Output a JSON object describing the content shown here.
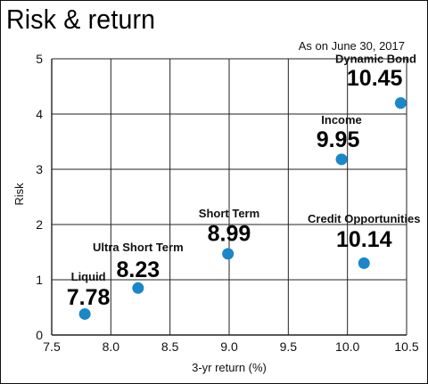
{
  "title": "Risk & return",
  "subtitle": "As on June 30, 2017",
  "colors": {
    "point": "#1a87c9",
    "grid": "#222222"
  },
  "chart_data": {
    "type": "scatter",
    "xlabel": "3-yr return (%)",
    "ylabel": "Risk",
    "xlim": [
      7.5,
      10.5
    ],
    "ylim": [
      0,
      5
    ],
    "xticks": [
      "7.5",
      "8.0",
      "8.5",
      "9.0",
      "9.5",
      "10.0",
      "10.5"
    ],
    "yticks": [
      "0",
      "1",
      "2",
      "3",
      "4",
      "5"
    ],
    "grid": true,
    "points": [
      {
        "name": "Liquid",
        "label": "7.78",
        "x": 7.78,
        "y": 0.38
      },
      {
        "name": "Ultra Short Term",
        "label": "8.23",
        "x": 8.23,
        "y": 0.85
      },
      {
        "name": "Short Term",
        "label": "8.99",
        "x": 8.99,
        "y": 1.47
      },
      {
        "name": "Income",
        "label": "9.95",
        "x": 9.95,
        "y": 3.18
      },
      {
        "name": "Credit Opportunities",
        "label": "10.14",
        "x": 10.14,
        "y": 1.3
      },
      {
        "name": "Dynamic Bond",
        "label": "10.45",
        "x": 10.45,
        "y": 4.2
      }
    ]
  }
}
